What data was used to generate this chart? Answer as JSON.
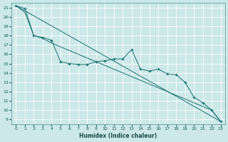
{
  "xlabel": "Humidex (Indice chaleur)",
  "background_color": "#cce8e8",
  "grid_color": "#ffffff",
  "line_color": "#1a7070",
  "xlim": [
    -0.5,
    23.5
  ],
  "ylim": [
    8.5,
    21.5
  ],
  "yticks": [
    9,
    10,
    11,
    12,
    13,
    14,
    15,
    16,
    17,
    18,
    19,
    20,
    21
  ],
  "xticks": [
    0,
    1,
    2,
    3,
    4,
    5,
    6,
    7,
    8,
    9,
    10,
    11,
    12,
    13,
    14,
    15,
    16,
    17,
    18,
    19,
    20,
    21,
    22,
    23
  ],
  "series_main": {
    "x": [
      0,
      1,
      2,
      3,
      4,
      5,
      6,
      7,
      8,
      9,
      10,
      11,
      12,
      13,
      14,
      15,
      16,
      17,
      18,
      19,
      20,
      21,
      22,
      23
    ],
    "y": [
      21.2,
      20.9,
      18.0,
      17.8,
      17.5,
      15.2,
      15.0,
      14.9,
      14.9,
      15.2,
      15.3,
      15.5,
      15.5,
      16.5,
      14.4,
      14.2,
      14.4,
      13.9,
      13.8,
      13.0,
      11.4,
      10.8,
      10.0,
      8.8
    ]
  },
  "series_line1": {
    "x": [
      0,
      1,
      2,
      3,
      4,
      5,
      6,
      7,
      8,
      9,
      10,
      11,
      12,
      13,
      14,
      15,
      16,
      17,
      18,
      19,
      20,
      21,
      22,
      23
    ],
    "y": [
      21.2,
      20.5,
      18.0,
      17.7,
      17.2,
      16.8,
      16.4,
      16.0,
      15.6,
      15.2,
      14.8,
      14.4,
      14.0,
      13.6,
      13.2,
      12.8,
      12.4,
      12.0,
      11.6,
      11.2,
      10.8,
      10.4,
      10.0,
      8.8
    ]
  },
  "series_line2": {
    "x": [
      0,
      23
    ],
    "y": [
      21.2,
      8.8
    ]
  }
}
